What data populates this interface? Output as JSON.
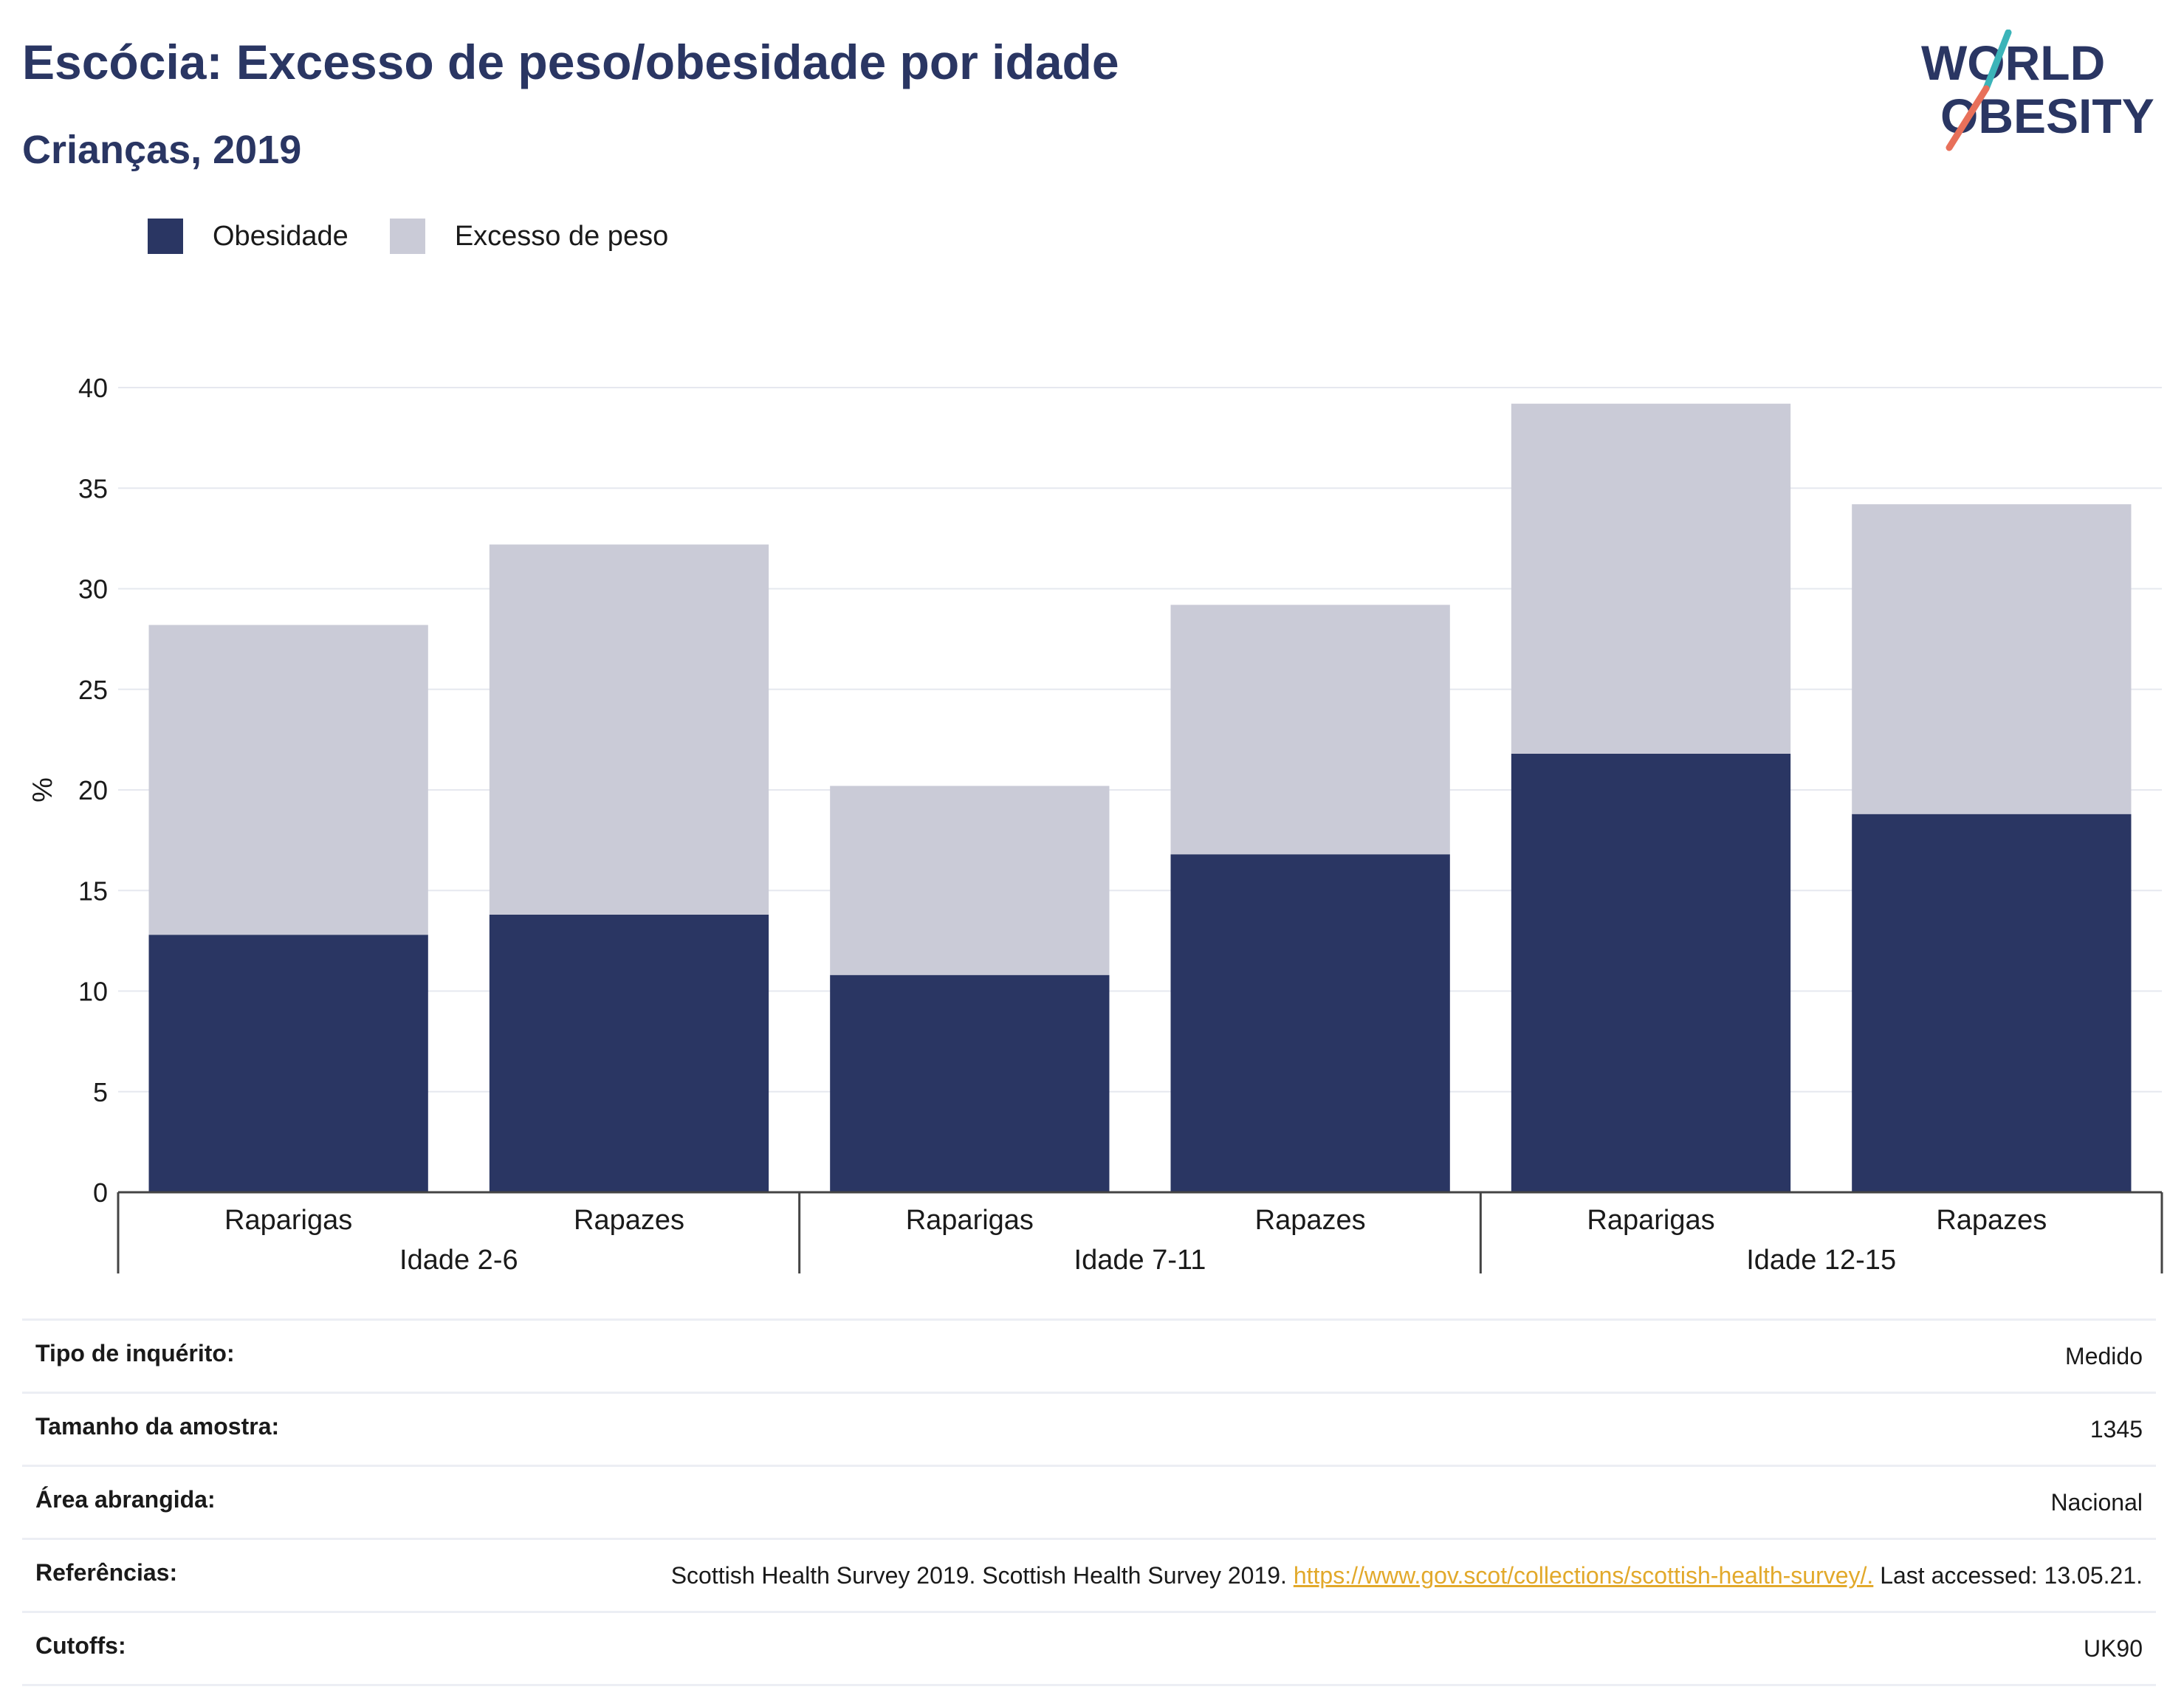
{
  "header": {
    "title": "Escócia: Excesso de peso/obesidade por idade",
    "subtitle": "Crianças, 2019"
  },
  "logo": {
    "line1": "WORLD",
    "line2": "OBESITY",
    "colors": [
      "#2a3663",
      "#3bb4b9",
      "#e8705a"
    ]
  },
  "colors": {
    "obesity": "#2a3663",
    "overweight": "#cacbd7",
    "accent_link": "#e2a92b"
  },
  "chart_data": {
    "type": "bar",
    "stacked": true,
    "ylabel": "%",
    "ylim": [
      0,
      40
    ],
    "yticks": [
      0,
      5,
      10,
      15,
      20,
      25,
      30,
      35,
      40
    ],
    "grid": true,
    "legend_position": "top-left",
    "groups": [
      "Idade 2-6",
      "Idade 7-11",
      "Idade 12-15"
    ],
    "categories": [
      "Raparigas",
      "Rapazes",
      "Raparigas",
      "Rapazes",
      "Raparigas",
      "Rapazes"
    ],
    "series": [
      {
        "name": "Obesidade",
        "values": [
          12.8,
          13.8,
          10.8,
          16.8,
          21.8,
          18.8
        ]
      },
      {
        "name": "Excesso de peso",
        "values": [
          15.4,
          18.4,
          9.4,
          12.4,
          17.4,
          15.4
        ]
      }
    ]
  },
  "meta": [
    {
      "key": "Tipo de inquérito:",
      "value": "Medido"
    },
    {
      "key": "Tamanho da amostra:",
      "value": "1345"
    },
    {
      "key": "Área abrangida:",
      "value": "Nacional"
    },
    {
      "key": "Referências:",
      "value_before": "Scottish Health Survey 2019. Scottish Health Survey 2019.",
      "link": "https://www.gov.scot/collections/scottish-health-survey/.",
      "value_after": "Last accessed: 13.05.21."
    },
    {
      "key": "Cutoffs:",
      "value": "UK90"
    }
  ]
}
